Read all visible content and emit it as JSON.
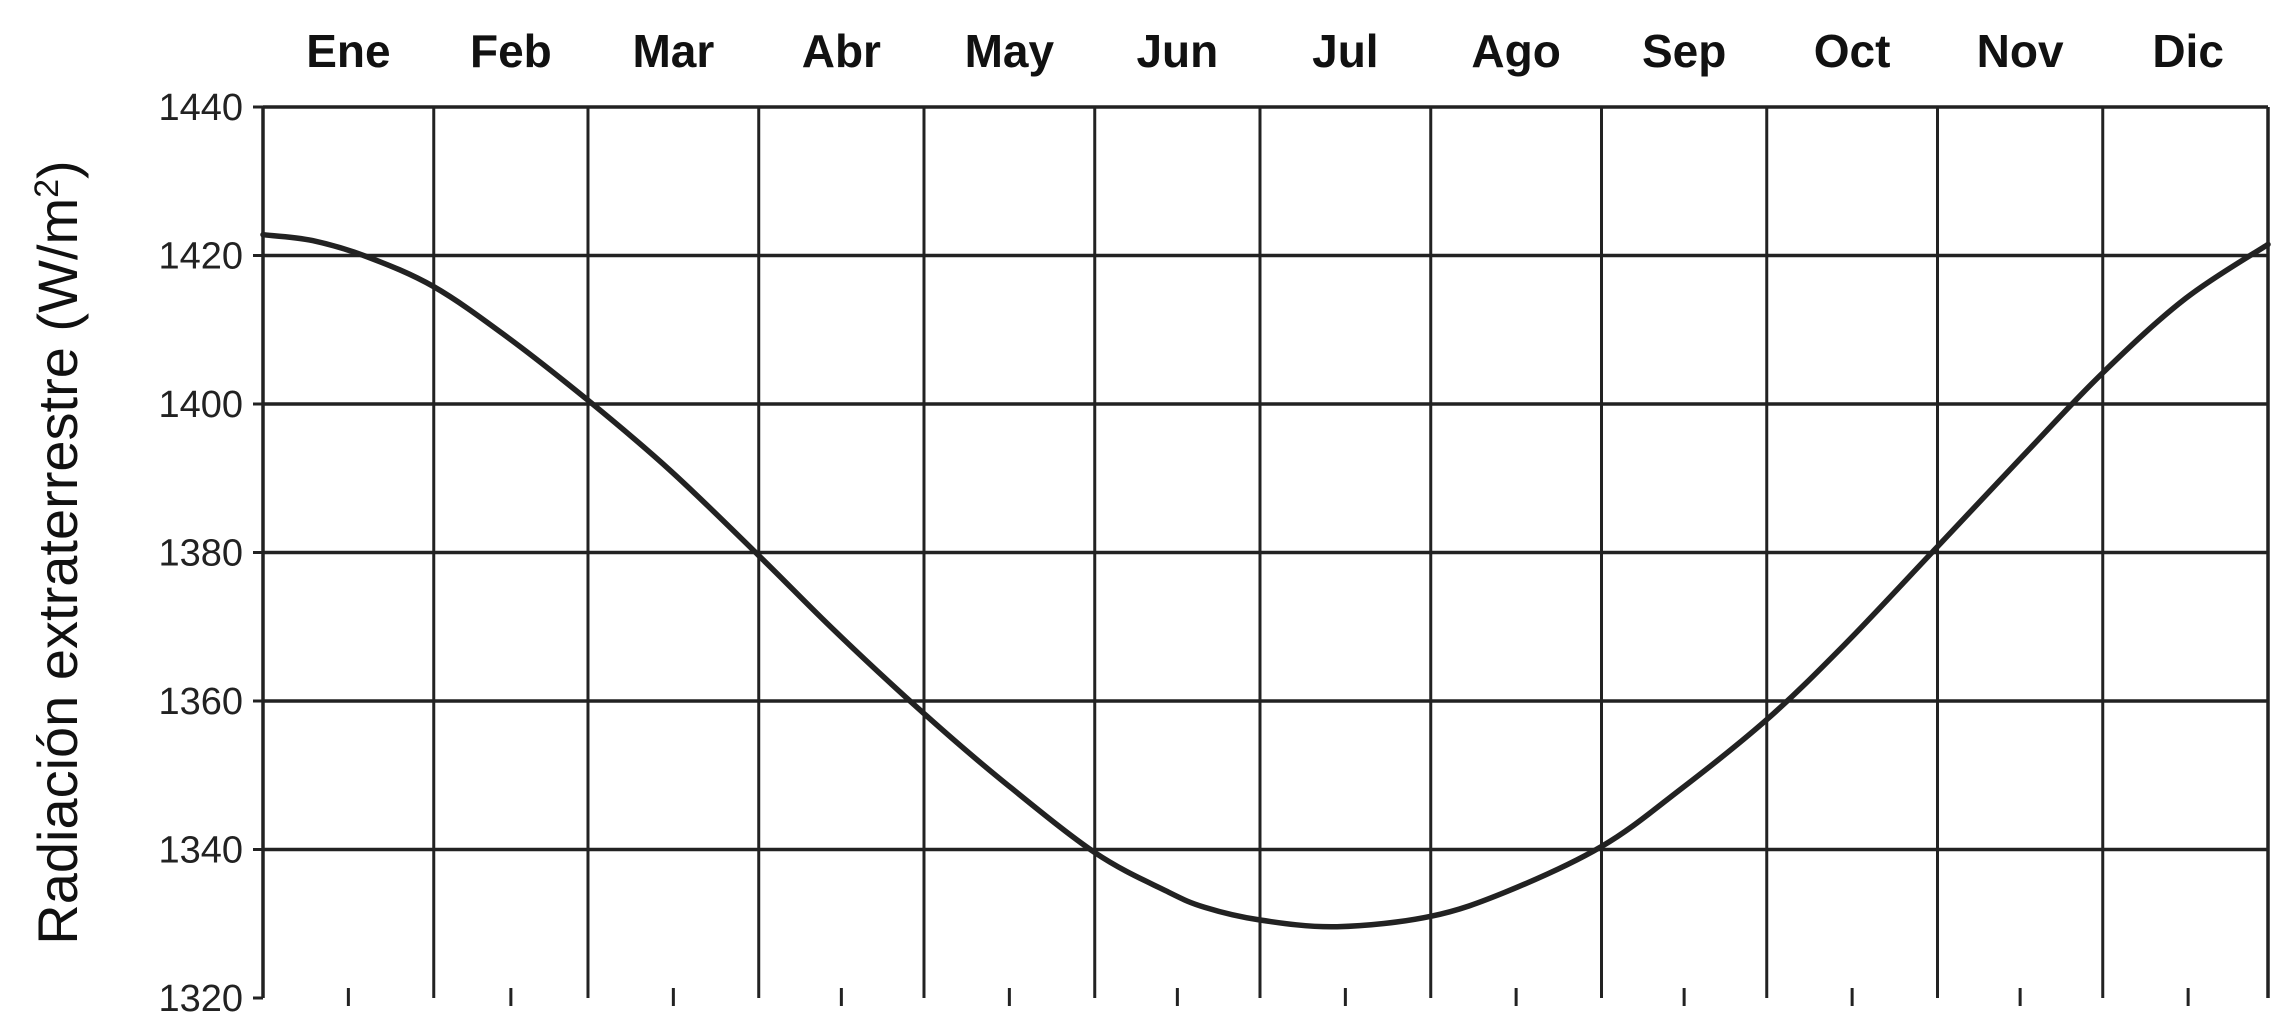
{
  "chart_data": {
    "type": "line",
    "title": "",
    "xlabel": "",
    "ylabel": "Radiación extraterrestre (W/m",
    "ylabel_superscript": "2",
    "ylabel_close": ")",
    "categories": [
      "Ene",
      "Feb",
      "Mar",
      "Abr",
      "May",
      "Jun",
      "Jul",
      "Ago",
      "Sep",
      "Oct",
      "Nov",
      "Dic"
    ],
    "xlim": [
      1,
      365
    ],
    "ylim": [
      1320,
      1440
    ],
    "yticks": [
      1320,
      1340,
      1360,
      1380,
      1400,
      1420,
      1440
    ],
    "grid": true,
    "legend": "none",
    "line_color": "#222222",
    "grid_color": "#222222",
    "series": [
      {
        "x": [
          1,
          10,
          20,
          32,
          45,
          60,
          75,
          91,
          105,
          121,
          135,
          152,
          165,
          172,
          182,
          196,
          213,
          227,
          244,
          258,
          274,
          288,
          305,
          320,
          335,
          350,
          365
        ],
        "values": [
          1422.8,
          1422.0,
          1419.8,
          1415.8,
          1409.2,
          1400.5,
          1391.0,
          1379.6,
          1369.3,
          1358.3,
          1349.4,
          1339.6,
          1334.4,
          1332.2,
          1330.5,
          1329.6,
          1331.0,
          1334.4,
          1340.4,
          1347.9,
          1357.5,
          1367.5,
          1380.8,
          1392.6,
          1404.2,
          1414.2,
          1421.5
        ]
      }
    ]
  }
}
